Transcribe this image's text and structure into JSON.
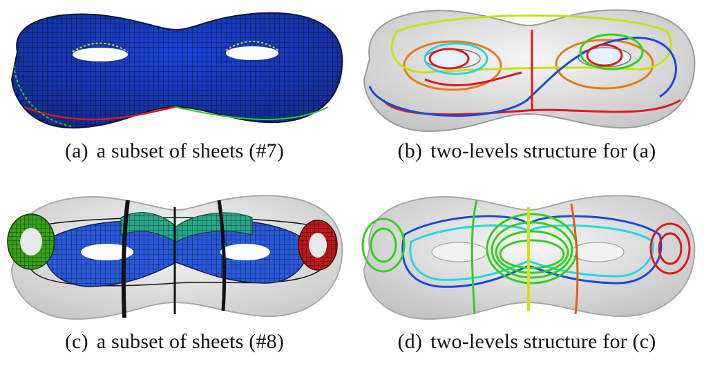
{
  "figure": {
    "panels": [
      {
        "label": "(a)",
        "caption": "a subset of sheets (#7)"
      },
      {
        "label": "(b)",
        "caption": "two-levels structure for (a)"
      },
      {
        "label": "(c)",
        "caption": "a subset of sheets (#8)"
      },
      {
        "label": "(d)",
        "caption": "two-levels structure for (c)"
      }
    ],
    "colors": {
      "mesh_blue": "#1a3fd6",
      "mesh_line": "#0a1640",
      "shell": "#d8d8d8",
      "red": "#e01818",
      "orange": "#e87a10",
      "yellow": "#d8e010",
      "green": "#30d018",
      "cyan": "#20d8e0",
      "blue": "#1848e0",
      "teal": "#18a0a0"
    }
  }
}
